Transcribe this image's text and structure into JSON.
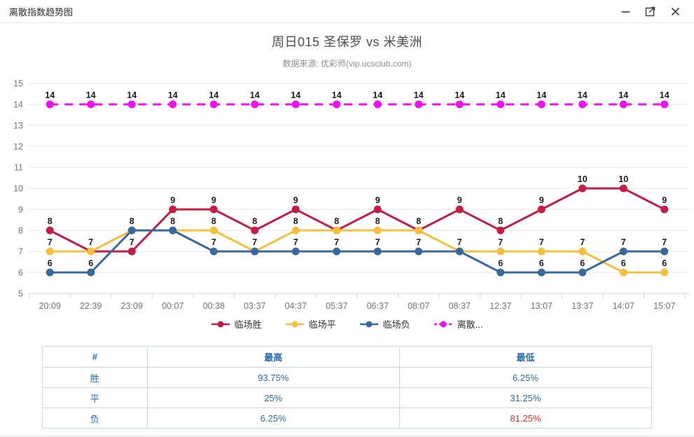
{
  "window": {
    "title": "离散指数趋势图"
  },
  "chart_data": {
    "type": "line",
    "title": "周日015 圣保罗 vs 米美洲",
    "subtitle": "数据来源: 优彩师(vip.ucsclub.com)",
    "categories": [
      "20:09",
      "22:39",
      "23:09",
      "00:07",
      "00:38",
      "03:37",
      "04:37",
      "05:37",
      "06:37",
      "08:07",
      "08:37",
      "12:37",
      "13:07",
      "13:37",
      "14:07",
      "15:07"
    ],
    "ylim": [
      5,
      15
    ],
    "grid": true,
    "legend_position": "bottom",
    "series": [
      {
        "name": "临场胜",
        "legend_label": "临场胜",
        "color": "#c51b46",
        "style": "solid",
        "values": [
          8,
          7,
          7,
          9,
          9,
          8,
          9,
          8,
          9,
          8,
          9,
          8,
          9,
          10,
          10,
          9
        ]
      },
      {
        "name": "临场平",
        "legend_label": "临场平",
        "color": "#f5bf3d",
        "style": "solid",
        "values": [
          7,
          7,
          8,
          8,
          8,
          7,
          8,
          8,
          8,
          8,
          7,
          7,
          7,
          7,
          6,
          6
        ]
      },
      {
        "name": "临场负",
        "legend_label": "临场负",
        "color": "#37689e",
        "style": "solid",
        "values": [
          6,
          6,
          8,
          8,
          7,
          7,
          7,
          7,
          7,
          7,
          7,
          6,
          6,
          6,
          7,
          7
        ]
      },
      {
        "name": "离散...",
        "legend_label": "离散...",
        "color": "#ef0fef",
        "style": "dashed",
        "values": [
          14,
          14,
          14,
          14,
          14,
          14,
          14,
          14,
          14,
          14,
          14,
          14,
          14,
          14,
          14,
          14
        ]
      }
    ]
  },
  "table": {
    "headers": [
      "#",
      "最高",
      "最低"
    ],
    "rows": [
      {
        "label": "胜",
        "high": "93.75%",
        "low": "6.25%",
        "low_alert": false
      },
      {
        "label": "平",
        "high": "25%",
        "low": "31.25%",
        "low_alert": false
      },
      {
        "label": "负",
        "high": "6.25%",
        "low": "81.25%",
        "low_alert": true
      }
    ]
  },
  "colors": {
    "grid": "#e7e7e7",
    "axis": "#c9d7e6",
    "tick_text": "#737373",
    "value_label": "#1b1b1b",
    "table_text": "#2a6bad",
    "alert": "#ee2c2c"
  }
}
